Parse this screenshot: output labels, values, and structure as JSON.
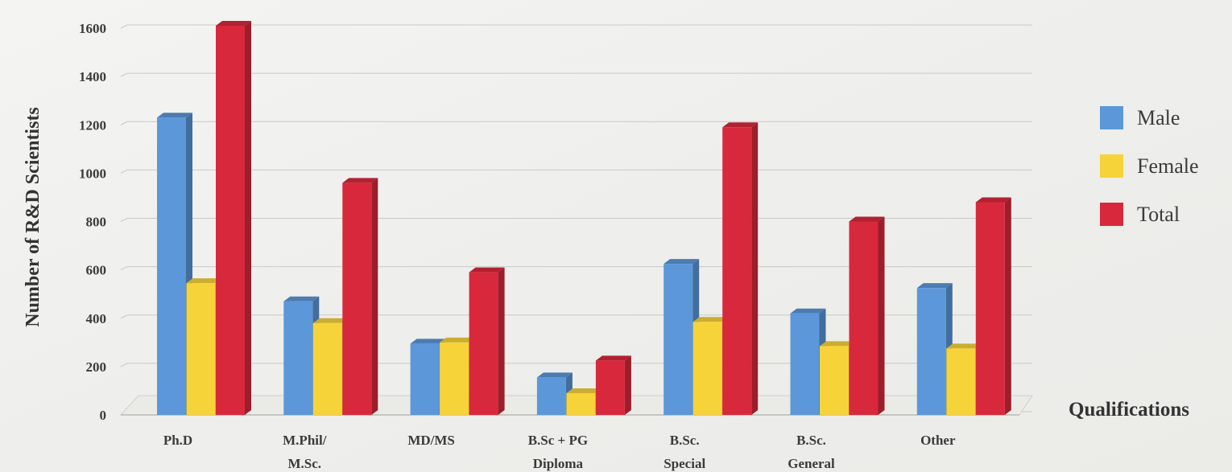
{
  "chart_data": {
    "type": "bar",
    "categories": [
      [
        "Ph.D"
      ],
      [
        "M.Phil/",
        "M.Sc."
      ],
      [
        "MD/MS"
      ],
      [
        "B.Sc + PG",
        "Diploma"
      ],
      [
        "B.Sc.",
        "Special"
      ],
      [
        "B.Sc.",
        "General"
      ],
      [
        "Other"
      ]
    ],
    "series": [
      {
        "name": "Male",
        "color": "#5b97d9",
        "values": [
          1230,
          470,
          295,
          155,
          625,
          420,
          525
        ]
      },
      {
        "name": "Female",
        "color": "#f7d33a",
        "values": [
          545,
          380,
          300,
          90,
          385,
          285,
          275
        ]
      },
      {
        "name": "Total",
        "color": "#d8283c",
        "values": [
          1610,
          960,
          590,
          225,
          1190,
          800,
          880
        ]
      }
    ],
    "yticks": [
      0,
      200,
      400,
      600,
      800,
      1000,
      1200,
      1400,
      1600
    ],
    "ylim": [
      0,
      1600
    ],
    "ylabel": "Number of R&D Scientists",
    "xlabel": "Qualifications",
    "legend_position": "right",
    "grid": true
  }
}
